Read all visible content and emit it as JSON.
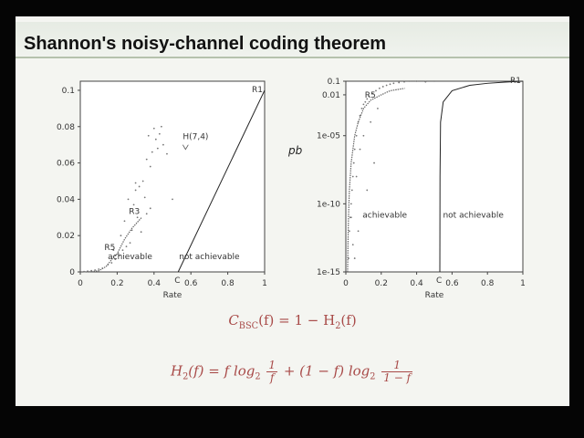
{
  "slide": {
    "title": "Shannon's noisy-channel coding theorem",
    "colors": {
      "formula": "#a84a48",
      "plot_line": "#222222",
      "accent_bar": "#b5c2ad"
    }
  },
  "formulas": {
    "capacity": {
      "lhs": "C",
      "sub": "BSC",
      "rest": "(f) = 1 − H",
      "sub2": "2",
      "end": "(f)"
    },
    "entropy": {
      "lhs": "H",
      "sub": "2",
      "mid1": "(f) = f log",
      "sub2": "2",
      "num1": "1",
      "den1": "f",
      "mid2": " + (1 − f) log",
      "sub3": "2",
      "num2": "1",
      "den2": "1 − f"
    }
  },
  "chart_data": [
    {
      "type": "scatter",
      "title": "",
      "xlabel": "Rate",
      "ylabel": "",
      "xlim": [
        0,
        1
      ],
      "ylim": [
        0,
        0.105
      ],
      "xticks": [
        "0",
        "0.2",
        "0.4",
        "0.6",
        "0.8",
        "1"
      ],
      "xtick_values": [
        0,
        0.2,
        0.4,
        0.6,
        0.8,
        1
      ],
      "yticks": [
        "0",
        "0.02",
        "0.04",
        "0.06",
        "0.08",
        "0.1"
      ],
      "ytick_values": [
        0,
        0.02,
        0.04,
        0.06,
        0.08,
        0.1
      ],
      "boundary_x": [
        0.531,
        1.0
      ],
      "boundary_y": [
        0,
        0.1
      ],
      "capacity_marker": {
        "label": "C",
        "x": 0.531
      },
      "point_labels": [
        {
          "text": "R1",
          "x": 1.0,
          "y": 0.1
        },
        {
          "text": "H(7,4)",
          "x": 0.571,
          "y": 0.07
        },
        {
          "text": "R3",
          "x": 0.333,
          "y": 0.03
        },
        {
          "text": "R5",
          "x": 0.2,
          "y": 0.01
        }
      ],
      "region_labels": [
        {
          "text": "achievable",
          "x": 0.27,
          "y": 0.007
        },
        {
          "text": "not achievable",
          "x": 0.7,
          "y": 0.007
        }
      ],
      "repetition_curve": {
        "x": [
          0.01,
          0.05,
          0.1,
          0.14,
          0.18,
          0.2,
          0.24,
          0.28,
          0.333
        ],
        "y": [
          0,
          0.0001,
          0.0006,
          0.003,
          0.008,
          0.01,
          0.018,
          0.024,
          0.03
        ]
      },
      "scatter_points": {
        "x": [
          0.02,
          0.04,
          0.06,
          0.08,
          0.1,
          0.12,
          0.15,
          0.17,
          0.19,
          0.21,
          0.23,
          0.25,
          0.27,
          0.28,
          0.3,
          0.31,
          0.32,
          0.34,
          0.35,
          0.36,
          0.37,
          0.38,
          0.39,
          0.4,
          0.41,
          0.42,
          0.43,
          0.44,
          0.45,
          0.47,
          0.5,
          0.26,
          0.29,
          0.33,
          0.36,
          0.22,
          0.18,
          0.24,
          0.38,
          0.3
        ],
        "y": [
          0.0002,
          0.0004,
          0.0007,
          0.001,
          0.0015,
          0.002,
          0.004,
          0.005,
          0.007,
          0.009,
          0.012,
          0.014,
          0.016,
          0.023,
          0.045,
          0.03,
          0.047,
          0.05,
          0.041,
          0.062,
          0.075,
          0.058,
          0.066,
          0.079,
          0.073,
          0.068,
          0.076,
          0.08,
          0.07,
          0.065,
          0.04,
          0.04,
          0.037,
          0.022,
          0.032,
          0.02,
          0.012,
          0.028,
          0.035,
          0.049
        ]
      }
    },
    {
      "type": "scatter",
      "title": "",
      "xlabel": "Rate",
      "ylabel": "pb",
      "yscale": "log",
      "xlim": [
        0,
        1
      ],
      "ylim": [
        1e-15,
        0.1
      ],
      "xticks": [
        "0",
        "0.2",
        "0.4",
        "0.6",
        "0.8",
        "1"
      ],
      "xtick_values": [
        0,
        0.2,
        0.4,
        0.6,
        0.8,
        1
      ],
      "yticks": [
        "0.1",
        "0.01",
        "1e-05",
        "1e-10",
        "1e-15"
      ],
      "ytick_values": [
        0.1,
        0.01,
        1e-05,
        1e-10,
        1e-15
      ],
      "boundary_x": [
        0.531,
        0.532,
        0.535,
        0.55,
        0.6,
        0.7,
        0.8,
        0.9,
        1.0
      ],
      "boundary_y": [
        1e-15,
        1e-08,
        0.0001,
        0.003,
        0.02,
        0.05,
        0.07,
        0.085,
        0.1
      ],
      "capacity_marker": {
        "label": "C",
        "x": 0.531
      },
      "point_labels": [
        {
          "text": "R5",
          "x": 0.2,
          "y": 0.01
        },
        {
          "text": "R1",
          "x": 1.0,
          "y": 0.1
        }
      ],
      "region_labels": [
        {
          "text": "achievable",
          "x": 0.22,
          "y": 1e-11
        },
        {
          "text": "not achievable",
          "x": 0.72,
          "y": 1e-11
        }
      ],
      "repetition_curve": {
        "x": [
          0.01,
          0.012,
          0.015,
          0.02,
          0.03,
          0.05,
          0.07,
          0.1,
          0.14,
          0.2,
          0.25,
          0.333
        ],
        "y": [
          1e-15,
          1e-13,
          1e-11,
          1e-09,
          1e-07,
          1e-05,
          0.0001,
          0.001,
          0.004,
          0.01,
          0.02,
          0.03
        ]
      },
      "scatter_points": {
        "x": [
          0.015,
          0.02,
          0.025,
          0.03,
          0.035,
          0.04,
          0.045,
          0.05,
          0.06,
          0.07,
          0.08,
          0.09,
          0.1,
          0.11,
          0.12,
          0.13,
          0.15,
          0.17,
          0.19,
          0.21,
          0.23,
          0.25,
          0.27,
          0.3,
          0.33,
          0.36,
          0.4,
          0.45,
          0.5,
          0.06,
          0.08,
          0.1,
          0.14,
          0.18,
          0.04,
          0.07,
          0.12,
          0.05,
          0.03,
          0.16
        ],
        "y": [
          1e-14,
          1e-12,
          1e-11,
          1e-10,
          1e-09,
          1e-08,
          1e-07,
          1e-06,
          1e-05,
          0.0001,
          0.0003,
          0.001,
          0.002,
          0.003,
          0.005,
          0.008,
          0.012,
          0.02,
          0.03,
          0.04,
          0.05,
          0.06,
          0.07,
          0.08,
          0.09,
          0.1,
          0.1,
          0.09,
          0.1,
          1e-08,
          1e-06,
          1e-05,
          0.0001,
          0.001,
          1e-13,
          1e-12,
          1e-09,
          1e-14,
          1e-11,
          1e-07
        ]
      }
    }
  ]
}
